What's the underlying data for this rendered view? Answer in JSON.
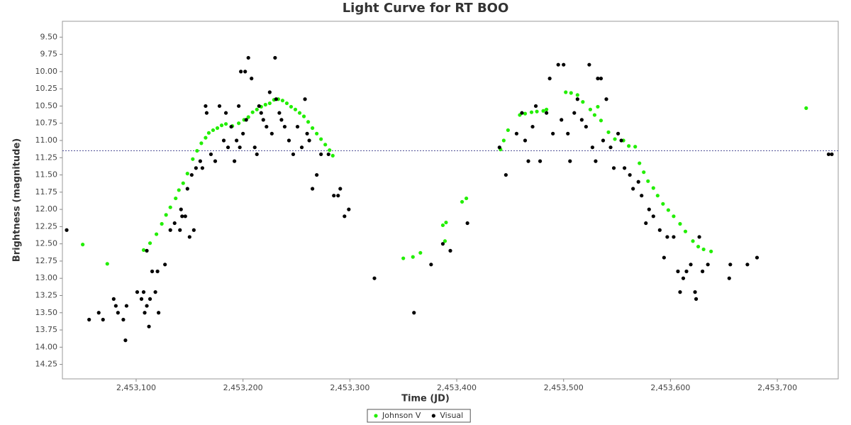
{
  "chart_data": {
    "type": "scatter",
    "title": "Light Curve for RT BOO",
    "x_label": "Time (JD)",
    "y_label": "Brightness (magnitude)",
    "xlim": [
      2453031,
      2453757
    ],
    "ylim": [
      9.27,
      14.46
    ],
    "y_inverted": true,
    "xticks": [
      {
        "value": 2453100,
        "label": "2,453,100"
      },
      {
        "value": 2453200,
        "label": "2,453,200"
      },
      {
        "value": 2453300,
        "label": "2,453,300"
      },
      {
        "value": 2453400,
        "label": "2,453,400"
      },
      {
        "value": 2453500,
        "label": "2,453,500"
      },
      {
        "value": 2453600,
        "label": "2,453,600"
      },
      {
        "value": 2453700,
        "label": "2,453,700"
      }
    ],
    "yticks": [
      {
        "value": 9.5,
        "label": "9.50"
      },
      9.75,
      {
        "value": 10,
        "label": "10.00"
      },
      10.25,
      {
        "value": 10.5,
        "label": "10.50"
      },
      10.75,
      {
        "value": 11,
        "label": "11.00"
      },
      11.25,
      {
        "value": 11.5,
        "label": "11.50"
      },
      11.75,
      {
        "value": 12,
        "label": "12.00"
      },
      12.25,
      {
        "value": 12.5,
        "label": "12.50"
      },
      12.75,
      {
        "value": 13,
        "label": "13.00"
      },
      13.25,
      {
        "value": 13.5,
        "label": "13.50"
      },
      13.75,
      {
        "value": 14,
        "label": "14.00"
      },
      14.25
    ],
    "reference_line": 11.15,
    "legend": "bottom",
    "series": [
      {
        "name": "Johnson V",
        "color": "#22ee00",
        "x": [
          2453050,
          2453073,
          2453107,
          2453113,
          2453119,
          2453124,
          2453128,
          2453132,
          2453137,
          2453140,
          2453144,
          2453148,
          2453153,
          2453157,
          2453161,
          2453165,
          2453168,
          2453172,
          2453176,
          2453180,
          2453184,
          2453190,
          2453196,
          2453201,
          2453205,
          2453209,
          2453213,
          2453217,
          2453221,
          2453225,
          2453229,
          2453233,
          2453237,
          2453241,
          2453245,
          2453249,
          2453253,
          2453257,
          2453261,
          2453265,
          2453269,
          2453273,
          2453277,
          2453281,
          2453284,
          2453350,
          2453359,
          2453366,
          2453387,
          2453390,
          2453389,
          2453405,
          2453409,
          2453441,
          2453444,
          2453448,
          2453459,
          2453464,
          2453470,
          2453475,
          2453481,
          2453484,
          2453502,
          2453507,
          2453513,
          2453518,
          2453525,
          2453529,
          2453532,
          2453535,
          2453542,
          2453548,
          2453556,
          2453561,
          2453567,
          2453571,
          2453575,
          2453579,
          2453584,
          2453588,
          2453593,
          2453598,
          2453603,
          2453609,
          2453614,
          2453621,
          2453626,
          2453631,
          2453638,
          2453727
        ],
        "values": [
          12.51,
          12.79,
          12.59,
          12.49,
          12.36,
          12.21,
          12.08,
          11.97,
          11.84,
          11.72,
          11.62,
          11.48,
          11.27,
          11.15,
          11.04,
          10.96,
          10.89,
          10.85,
          10.82,
          10.78,
          10.76,
          10.79,
          10.75,
          10.7,
          10.66,
          10.59,
          10.55,
          10.51,
          10.48,
          10.46,
          10.41,
          10.4,
          10.42,
          10.46,
          10.51,
          10.55,
          10.6,
          10.65,
          10.73,
          10.82,
          10.9,
          10.98,
          11.06,
          11.14,
          11.22,
          12.71,
          12.69,
          12.63,
          12.23,
          12.19,
          12.46,
          11.89,
          11.84,
          11.13,
          11,
          10.85,
          10.63,
          10.61,
          10.59,
          10.58,
          10.57,
          10.55,
          10.3,
          10.31,
          10.34,
          10.44,
          10.55,
          10.63,
          10.51,
          10.71,
          10.88,
          10.98,
          11,
          11.08,
          11.09,
          11.33,
          11.46,
          11.59,
          11.69,
          11.8,
          11.92,
          12.01,
          12.1,
          12.21,
          12.32,
          12.46,
          12.54,
          12.58,
          12.61,
          10.53
        ]
      },
      {
        "name": "Visual",
        "color": "#000000",
        "x": [
          2453035,
          2453056,
          2453065,
          2453069,
          2453079,
          2453081,
          2453083,
          2453088,
          2453090,
          2453091,
          2453101,
          2453105,
          2453107,
          2453108,
          2453110,
          2453112,
          2453113,
          2453115,
          2453118,
          2453120,
          2453121,
          2453110,
          2453127,
          2453132,
          2453136,
          2453142,
          2453143,
          2453146,
          2453141,
          2453150,
          2453154,
          2453148,
          2453152,
          2453156,
          2453160,
          2453162,
          2453165,
          2453166,
          2453170,
          2453174,
          2453178,
          2453182,
          2453184,
          2453186,
          2453189,
          2453192,
          2453194,
          2453196,
          2453197,
          2453198,
          2453200,
          2453202,
          2453203,
          2453205,
          2453208,
          2453211,
          2453213,
          2453215,
          2453217,
          2453219,
          2453222,
          2453225,
          2453227,
          2453230,
          2453231,
          2453234,
          2453236,
          2453239,
          2453243,
          2453247,
          2453251,
          2453255,
          2453258,
          2453260,
          2453262,
          2453265,
          2453269,
          2453273,
          2453280,
          2453285,
          2453289,
          2453291,
          2453295,
          2453299,
          2453323,
          2453360,
          2453376,
          2453387,
          2453394,
          2453410,
          2453440,
          2453446,
          2453456,
          2453461,
          2453464,
          2453467,
          2453471,
          2453474,
          2453478,
          2453484,
          2453487,
          2453490,
          2453495,
          2453498,
          2453500,
          2453504,
          2453506,
          2453510,
          2453513,
          2453517,
          2453521,
          2453524,
          2453527,
          2453530,
          2453532,
          2453535,
          2453537,
          2453540,
          2453544,
          2453547,
          2453551,
          2453554,
          2453557,
          2453562,
          2453565,
          2453570,
          2453573,
          2453577,
          2453580,
          2453584,
          2453590,
          2453594,
          2453597,
          2453603,
          2453607,
          2453609,
          2453612,
          2453615,
          2453619,
          2453623,
          2453624,
          2453627,
          2453630,
          2453635,
          2453655,
          2453656,
          2453672,
          2453681,
          2453748,
          2453751
        ],
        "values": [
          12.3,
          13.6,
          13.5,
          13.6,
          13.3,
          13.4,
          13.5,
          13.6,
          13.9,
          13.4,
          13.2,
          13.3,
          13.2,
          13.5,
          13.4,
          13.7,
          13.3,
          12.9,
          13.2,
          12.9,
          13.5,
          12.6,
          12.8,
          12.3,
          12.2,
          12,
          12.1,
          12.1,
          12.3,
          12.4,
          12.3,
          11.7,
          11.5,
          11.4,
          11.3,
          11.4,
          10.5,
          10.6,
          11.2,
          11.3,
          10.5,
          11,
          10.6,
          11.1,
          10.8,
          11.3,
          11,
          10.5,
          11.1,
          10,
          10.9,
          10,
          10.7,
          9.8,
          10.1,
          11.1,
          11.2,
          10.5,
          10.6,
          10.7,
          10.8,
          10.3,
          10.9,
          9.8,
          10.4,
          10.6,
          10.7,
          10.8,
          11,
          11.2,
          10.8,
          11.1,
          10.4,
          10.9,
          11,
          11.7,
          11.5,
          11.2,
          11.2,
          11.8,
          11.8,
          11.7,
          12.1,
          12,
          13,
          13.5,
          12.8,
          12.5,
          12.6,
          12.2,
          11.1,
          11.5,
          10.9,
          10.6,
          11,
          11.3,
          10.8,
          10.5,
          11.3,
          10.6,
          10.1,
          10.9,
          9.9,
          10.7,
          9.9,
          10.9,
          11.3,
          10.6,
          10.4,
          10.7,
          10.8,
          9.9,
          11.1,
          11.3,
          10.1,
          10.1,
          11,
          10.4,
          11.1,
          11.4,
          10.9,
          11,
          11.4,
          11.5,
          11.7,
          11.6,
          11.8,
          12.2,
          12,
          12.1,
          12.3,
          12.7,
          12.4,
          12.4,
          12.9,
          13.2,
          13,
          12.9,
          12.8,
          13.2,
          13.3,
          12.4,
          12.9,
          12.8,
          13,
          12.8,
          12.8,
          12.7,
          11.2,
          11.2
        ]
      }
    ]
  }
}
